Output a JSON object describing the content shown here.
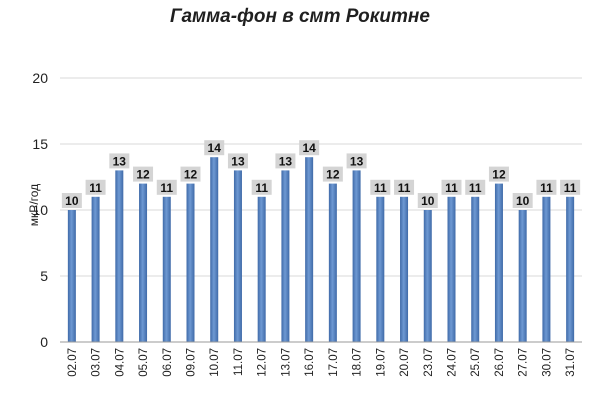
{
  "chart_data": {
    "type": "bar",
    "title": "Гамма-фон в смт Рокитне",
    "ylabel": "мкР/год",
    "xlabel": "",
    "ylim": [
      0,
      20
    ],
    "yticks": [
      0,
      5,
      10,
      15,
      20
    ],
    "grid": true,
    "categories": [
      "02.07",
      "03.07",
      "04.07",
      "05.07",
      "06.07",
      "09.07",
      "10.07",
      "11.07",
      "12.07",
      "13.07",
      "16.07",
      "17.07",
      "18.07",
      "19.07",
      "20.07",
      "23.07",
      "24.07",
      "25.07",
      "26.07",
      "27.07",
      "30.07",
      "31.07"
    ],
    "values": [
      10,
      11,
      13,
      12,
      11,
      12,
      14,
      13,
      11,
      13,
      14,
      12,
      13,
      11,
      11,
      10,
      11,
      11,
      12,
      10,
      11,
      11
    ],
    "colors": {
      "bar": "#5b87c4",
      "bar_dark": "#3f6aa8",
      "label_bg": "#d4d4d4",
      "grid": "#d9d9d9"
    }
  }
}
